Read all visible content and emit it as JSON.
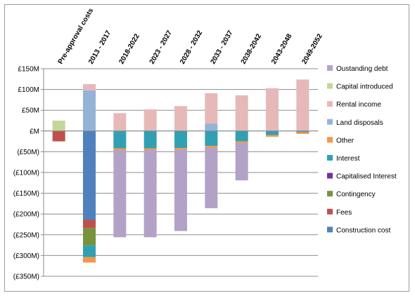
{
  "chart_data": {
    "type": "bar",
    "stacked": true,
    "categories": [
      "Pre-approval costs",
      "2013 - 2017",
      "2018-2022",
      "2023 - 2027",
      "2028 - 2032",
      "2033 - 2037",
      "2038-2042",
      "2043-2048",
      "2049-2052"
    ],
    "y_ticks": [
      "£150M",
      "£100M",
      "£50M",
      "£M",
      "(£50M)",
      "(£100M)",
      "(£150M)",
      "(£200M)",
      "(£250M)",
      "(£300M)",
      "(£350M)"
    ],
    "ylim": [
      -350,
      150
    ],
    "grid": true,
    "legend_position": "right",
    "legend": [
      "Oustanding debt",
      "Capital introduced",
      "Rental income",
      "Land disposals",
      "Other",
      "Interest",
      "Capitalised Interest",
      "Contingency",
      "Fees",
      "Construction cost"
    ],
    "positive_stack_order": [
      "Land disposals",
      "Capital introduced",
      "Rental income"
    ],
    "negative_stack_order": [
      "Construction cost",
      "Fees",
      "Contingency",
      "Capitalised Interest",
      "Interest",
      "Other",
      "Oustanding debt"
    ],
    "series": [
      {
        "name": "Oustanding debt",
        "color": "#b3a2c7",
        "values": [
          0,
          0,
          -210,
          -210,
          -196,
          -146,
          -90,
          0,
          0
        ]
      },
      {
        "name": "Capital introduced",
        "color": "#c3d69b",
        "values": [
          25,
          0,
          0,
          0,
          0,
          0,
          0,
          0,
          0
        ]
      },
      {
        "name": "Rental income",
        "color": "#e6b9b8",
        "values": [
          0,
          15,
          43,
          52,
          60,
          73,
          86,
          103,
          124
        ]
      },
      {
        "name": "Land disposals",
        "color": "#95b3d7",
        "values": [
          0,
          98,
          0,
          0,
          0,
          18,
          0,
          0,
          0
        ]
      },
      {
        "name": "Other",
        "color": "#f79646",
        "values": [
          0,
          -13,
          -4,
          -4,
          -4,
          -4,
          -4,
          -4,
          -4
        ]
      },
      {
        "name": "Interest",
        "color": "#31a0b2",
        "values": [
          0,
          -28,
          -42,
          -42,
          -41,
          -36,
          -25,
          -10,
          -3
        ]
      },
      {
        "name": "Capitalised Interest",
        "color": "#7030a0",
        "values": [
          0,
          0,
          0,
          0,
          0,
          0,
          0,
          0,
          0
        ]
      },
      {
        "name": "Contingency",
        "color": "#77933c",
        "values": [
          0,
          -42,
          0,
          0,
          0,
          0,
          0,
          0,
          0
        ]
      },
      {
        "name": "Fees",
        "color": "#c0504d",
        "values": [
          -25,
          -20,
          0,
          0,
          0,
          0,
          0,
          0,
          0
        ]
      },
      {
        "name": "Construction cost",
        "color": "#4f81bd",
        "values": [
          0,
          -214,
          0,
          0,
          0,
          0,
          0,
          0,
          0
        ]
      }
    ]
  }
}
